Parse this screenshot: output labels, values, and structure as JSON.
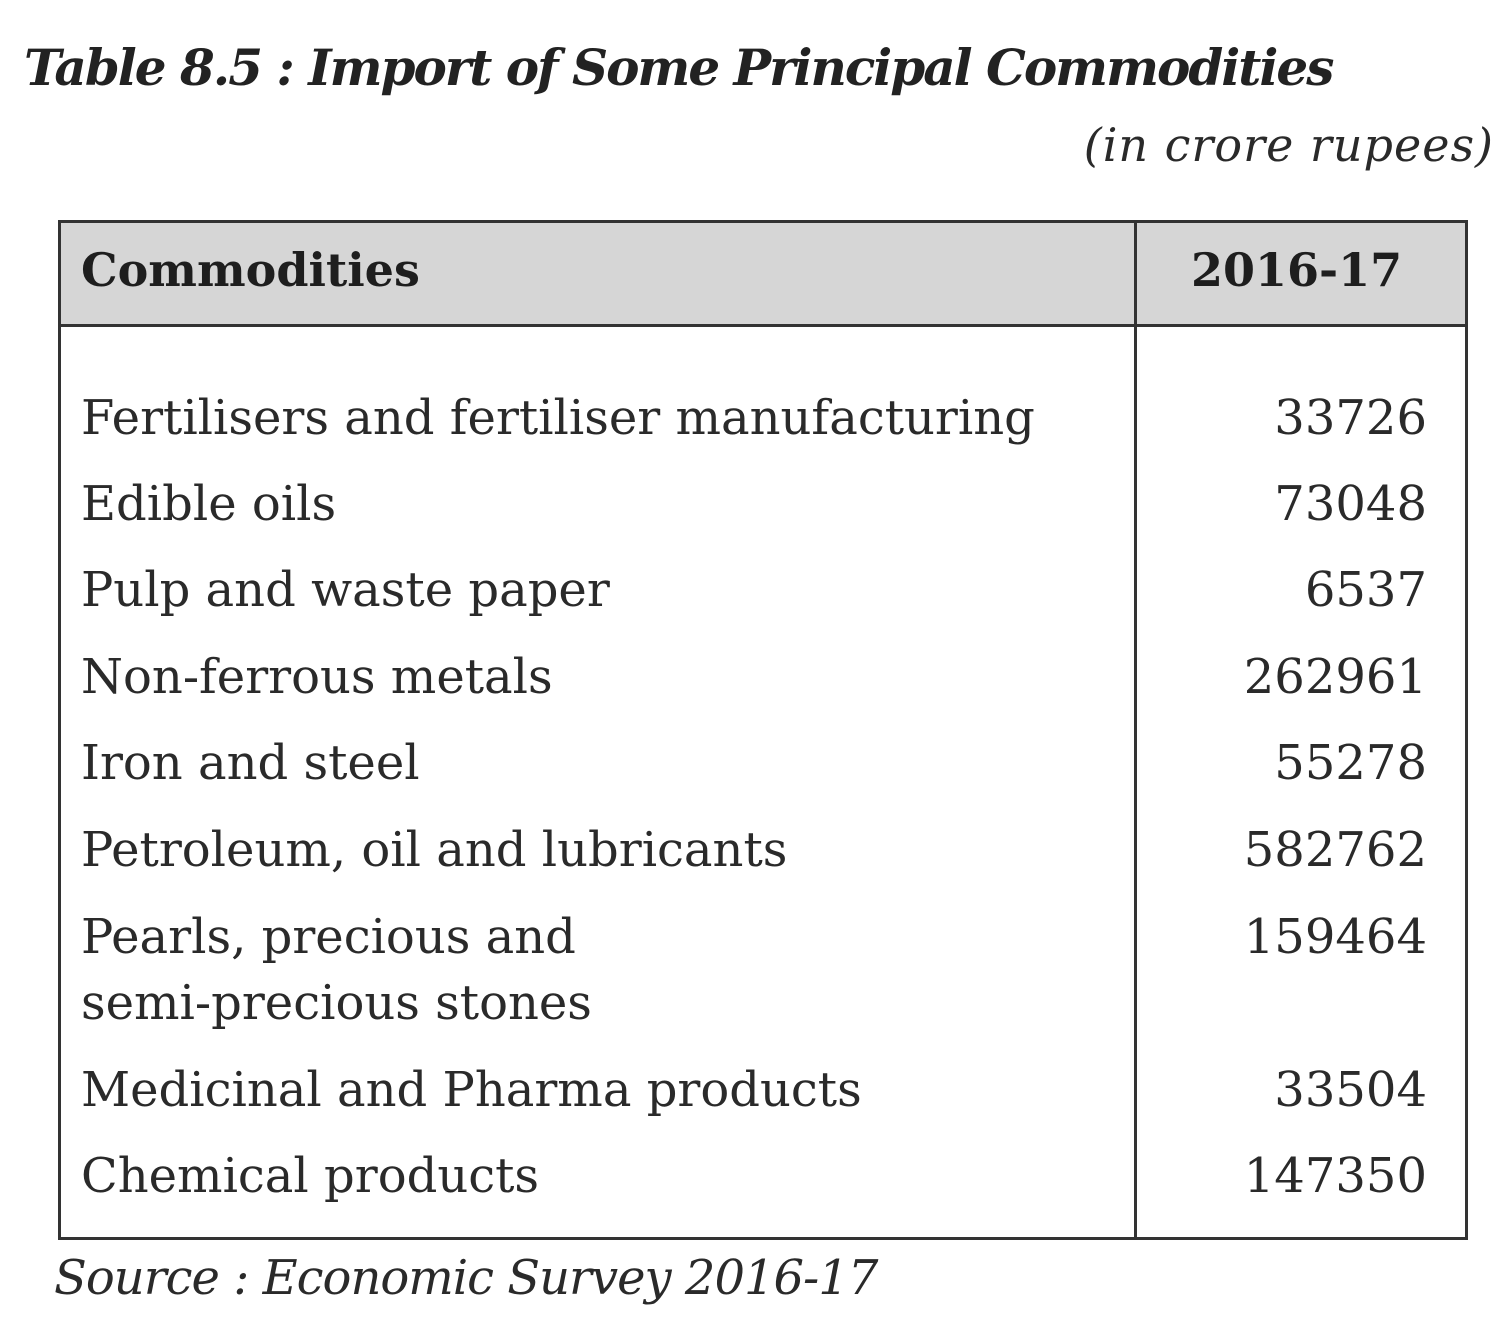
{
  "title": "Table 8.5 : Import of Some Principal Commodities",
  "unit_note": "(in crore rupees)",
  "table": {
    "columns": [
      "Commodities",
      "2016-17"
    ],
    "rows": [
      {
        "commodity": "Fertilisers and fertiliser manufacturing",
        "value": "33726"
      },
      {
        "commodity": "Edible oils",
        "value": "73048"
      },
      {
        "commodity": "Pulp and waste paper",
        "value": "6537"
      },
      {
        "commodity": "Non-ferrous metals",
        "value": "262961"
      },
      {
        "commodity": "Iron and steel",
        "value": "55278"
      },
      {
        "commodity": "Petroleum, oil and lubricants",
        "value": "582762"
      },
      {
        "commodity": "Pearls, precious and\nsemi-precious stones",
        "value": "159464"
      },
      {
        "commodity": "Medicinal and Pharma products",
        "value": "33504"
      },
      {
        "commodity": "Chemical products",
        "value": "147350"
      }
    ]
  },
  "source": "Source : Economic Survey 2016-17"
}
